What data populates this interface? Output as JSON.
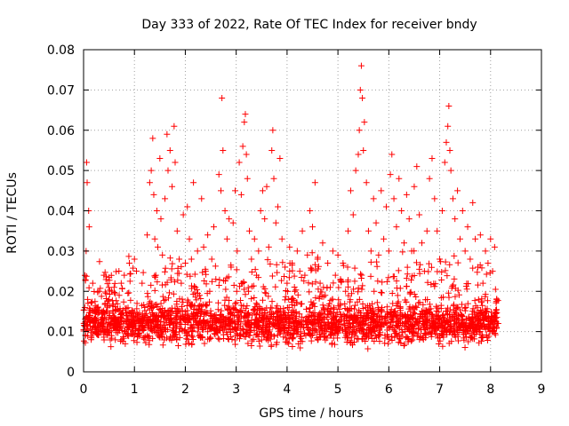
{
  "chart_data": {
    "type": "scatter",
    "title": "Day 333 of 2022, Rate Of TEC Index for receiver bndy",
    "xlabel": "GPS time / hours",
    "ylabel": "ROTI / TECUs",
    "xlim": [
      0,
      9
    ],
    "ylim": [
      0,
      0.08
    ],
    "x_ticks": [
      "0",
      "1",
      "2",
      "3",
      "4",
      "5",
      "6",
      "7",
      "8",
      "9"
    ],
    "y_ticks": [
      "0",
      "0.01",
      "0.02",
      "0.03",
      "0.04",
      "0.05",
      "0.06",
      "0.07",
      "0.08"
    ],
    "grid": true,
    "marker": "+",
    "color": "#ff0000",
    "series": [
      {
        "name": "ROTI",
        "points": [
          [
            0.02,
            0.012
          ],
          [
            0.04,
            0.009
          ],
          [
            0.05,
            0.03
          ],
          [
            0.06,
            0.052
          ],
          [
            0.07,
            0.047
          ],
          [
            0.08,
            0.018
          ],
          [
            0.1,
            0.04
          ],
          [
            0.11,
            0.036
          ],
          [
            0.13,
            0.014
          ],
          [
            0.15,
            0.008
          ],
          [
            0.18,
            0.022
          ],
          [
            0.22,
            0.011
          ],
          [
            0.26,
            0.016
          ],
          [
            0.3,
            0.02
          ],
          [
            0.35,
            0.01
          ],
          [
            0.4,
            0.024
          ],
          [
            0.45,
            0.013
          ],
          [
            0.5,
            0.018
          ],
          [
            0.55,
            0.009
          ],
          [
            0.6,
            0.021
          ],
          [
            0.65,
            0.012
          ],
          [
            0.7,
            0.019
          ],
          [
            0.75,
            0.008
          ],
          [
            0.8,
            0.024
          ],
          [
            0.85,
            0.014
          ],
          [
            0.9,
            0.027
          ],
          [
            0.95,
            0.011
          ],
          [
            1.0,
            0.028
          ],
          [
            1.05,
            0.017
          ],
          [
            1.1,
            0.013
          ],
          [
            1.15,
            0.022
          ],
          [
            1.2,
            0.016
          ],
          [
            1.25,
            0.034
          ],
          [
            1.3,
            0.047
          ],
          [
            1.33,
            0.05
          ],
          [
            1.36,
            0.058
          ],
          [
            1.38,
            0.044
          ],
          [
            1.4,
            0.033
          ],
          [
            1.42,
            0.024
          ],
          [
            1.44,
            0.04
          ],
          [
            1.46,
            0.031
          ],
          [
            1.5,
            0.053
          ],
          [
            1.52,
            0.038
          ],
          [
            1.55,
            0.029
          ],
          [
            1.6,
            0.043
          ],
          [
            1.64,
            0.059
          ],
          [
            1.66,
            0.05
          ],
          [
            1.7,
            0.055
          ],
          [
            1.74,
            0.046
          ],
          [
            1.78,
            0.061
          ],
          [
            1.8,
            0.052
          ],
          [
            1.84,
            0.035
          ],
          [
            1.88,
            0.028
          ],
          [
            1.92,
            0.022
          ],
          [
            1.96,
            0.039
          ],
          [
            2.0,
            0.027
          ],
          [
            2.04,
            0.041
          ],
          [
            2.08,
            0.033
          ],
          [
            2.12,
            0.028
          ],
          [
            2.16,
            0.047
          ],
          [
            2.2,
            0.021
          ],
          [
            2.24,
            0.03
          ],
          [
            2.28,
            0.019
          ],
          [
            2.32,
            0.043
          ],
          [
            2.36,
            0.031
          ],
          [
            2.4,
            0.025
          ],
          [
            2.44,
            0.034
          ],
          [
            2.48,
            0.02
          ],
          [
            2.52,
            0.028
          ],
          [
            2.56,
            0.036
          ],
          [
            2.6,
            0.023
          ],
          [
            2.66,
            0.049
          ],
          [
            2.7,
            0.045
          ],
          [
            2.72,
            0.068
          ],
          [
            2.74,
            0.055
          ],
          [
            2.78,
            0.04
          ],
          [
            2.82,
            0.033
          ],
          [
            2.86,
            0.038
          ],
          [
            2.9,
            0.026
          ],
          [
            2.94,
            0.037
          ],
          [
            2.98,
            0.045
          ],
          [
            3.02,
            0.03
          ],
          [
            3.06,
            0.052
          ],
          [
            3.1,
            0.044
          ],
          [
            3.13,
            0.056
          ],
          [
            3.16,
            0.062
          ],
          [
            3.18,
            0.064
          ],
          [
            3.2,
            0.054
          ],
          [
            3.22,
            0.048
          ],
          [
            3.26,
            0.035
          ],
          [
            3.3,
            0.028
          ],
          [
            3.36,
            0.033
          ],
          [
            3.4,
            0.024
          ],
          [
            3.44,
            0.03
          ],
          [
            3.48,
            0.04
          ],
          [
            3.52,
            0.045
          ],
          [
            3.56,
            0.038
          ],
          [
            3.6,
            0.046
          ],
          [
            3.64,
            0.031
          ],
          [
            3.7,
            0.055
          ],
          [
            3.72,
            0.06
          ],
          [
            3.74,
            0.048
          ],
          [
            3.78,
            0.037
          ],
          [
            3.82,
            0.041
          ],
          [
            3.86,
            0.053
          ],
          [
            3.9,
            0.033
          ],
          [
            3.96,
            0.026
          ],
          [
            4.0,
            0.022
          ],
          [
            4.05,
            0.031
          ],
          [
            4.1,
            0.027
          ],
          [
            4.15,
            0.02
          ],
          [
            4.2,
            0.03
          ],
          [
            4.25,
            0.025
          ],
          [
            4.3,
            0.035
          ],
          [
            4.35,
            0.024
          ],
          [
            4.4,
            0.029
          ],
          [
            4.45,
            0.04
          ],
          [
            4.5,
            0.036
          ],
          [
            4.55,
            0.047
          ],
          [
            4.6,
            0.028
          ],
          [
            4.65,
            0.022
          ],
          [
            4.7,
            0.032
          ],
          [
            4.75,
            0.019
          ],
          [
            4.8,
            0.027
          ],
          [
            4.85,
            0.021
          ],
          [
            4.9,
            0.03
          ],
          [
            4.95,
            0.024
          ],
          [
            5.0,
            0.029
          ],
          [
            5.05,
            0.023
          ],
          [
            5.1,
            0.027
          ],
          [
            5.15,
            0.02
          ],
          [
            5.2,
            0.035
          ],
          [
            5.25,
            0.045
          ],
          [
            5.3,
            0.039
          ],
          [
            5.35,
            0.05
          ],
          [
            5.4,
            0.054
          ],
          [
            5.42,
            0.06
          ],
          [
            5.44,
            0.07
          ],
          [
            5.46,
            0.076
          ],
          [
            5.48,
            0.068
          ],
          [
            5.5,
            0.055
          ],
          [
            5.52,
            0.062
          ],
          [
            5.56,
            0.047
          ],
          [
            5.6,
            0.035
          ],
          [
            5.65,
            0.03
          ],
          [
            5.7,
            0.043
          ],
          [
            5.75,
            0.037
          ],
          [
            5.8,
            0.029
          ],
          [
            5.85,
            0.045
          ],
          [
            5.9,
            0.033
          ],
          [
            5.95,
            0.041
          ],
          [
            6.0,
            0.03
          ],
          [
            6.03,
            0.049
          ],
          [
            6.06,
            0.054
          ],
          [
            6.1,
            0.043
          ],
          [
            6.15,
            0.036
          ],
          [
            6.2,
            0.048
          ],
          [
            6.25,
            0.04
          ],
          [
            6.3,
            0.032
          ],
          [
            6.35,
            0.044
          ],
          [
            6.4,
            0.038
          ],
          [
            6.45,
            0.03
          ],
          [
            6.5,
            0.046
          ],
          [
            6.55,
            0.051
          ],
          [
            6.6,
            0.039
          ],
          [
            6.65,
            0.032
          ],
          [
            6.7,
            0.025
          ],
          [
            6.75,
            0.035
          ],
          [
            6.8,
            0.048
          ],
          [
            6.85,
            0.053
          ],
          [
            6.9,
            0.043
          ],
          [
            6.95,
            0.035
          ],
          [
            7.0,
            0.028
          ],
          [
            7.05,
            0.04
          ],
          [
            7.1,
            0.052
          ],
          [
            7.13,
            0.057
          ],
          [
            7.16,
            0.061
          ],
          [
            7.18,
            0.066
          ],
          [
            7.2,
            0.055
          ],
          [
            7.22,
            0.05
          ],
          [
            7.26,
            0.043
          ],
          [
            7.3,
            0.038
          ],
          [
            7.35,
            0.045
          ],
          [
            7.4,
            0.033
          ],
          [
            7.45,
            0.04
          ],
          [
            7.5,
            0.03
          ],
          [
            7.55,
            0.036
          ],
          [
            7.6,
            0.028
          ],
          [
            7.65,
            0.042
          ],
          [
            7.7,
            0.033
          ],
          [
            7.75,
            0.026
          ],
          [
            7.8,
            0.034
          ],
          [
            7.85,
            0.022
          ],
          [
            7.9,
            0.03
          ],
          [
            7.95,
            0.027
          ],
          [
            8.0,
            0.033
          ],
          [
            8.04,
            0.025
          ],
          [
            8.08,
            0.031
          ],
          [
            8.12,
            0.018
          ],
          [
            8.15,
            0.012
          ]
        ]
      }
    ],
    "background_band": {
      "x_range": [
        0.0,
        8.15
      ],
      "y_center": 0.012,
      "y_spread": 0.007
    }
  }
}
